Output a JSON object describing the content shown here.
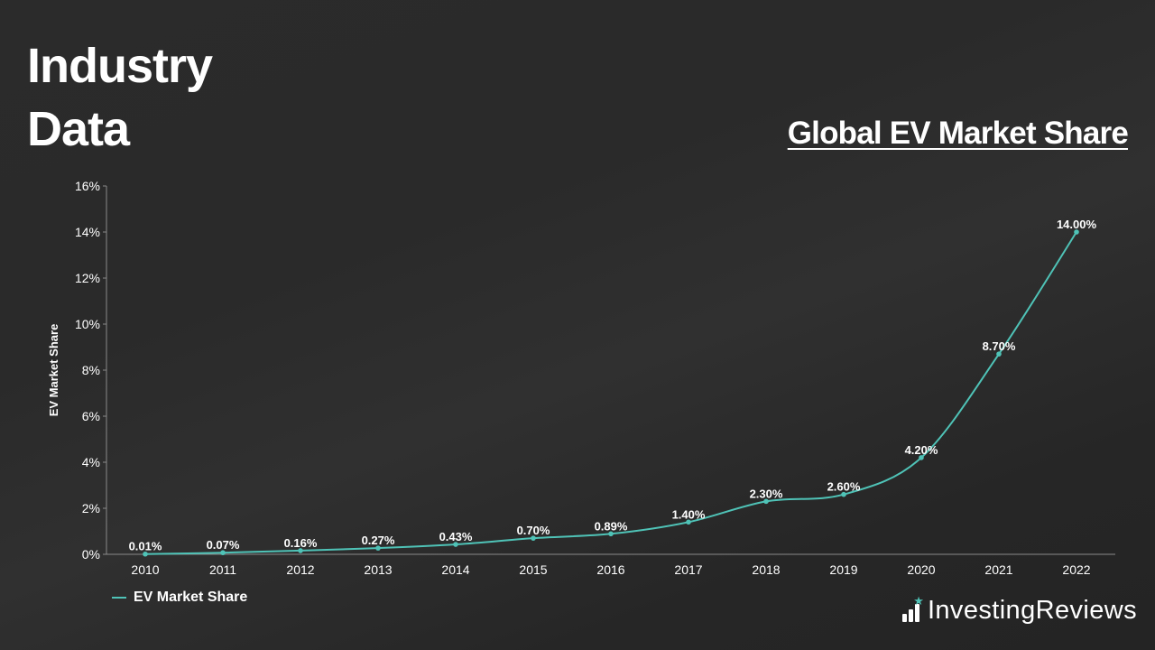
{
  "heading": {
    "line1": "Industry",
    "line2": "Data"
  },
  "brand": {
    "name": "InvestingReviews",
    "icon": "bar-chart-star-icon",
    "accent": "#4fc3b7"
  },
  "colors": {
    "series": "#4fc3b7",
    "axis": "#8a8a8a"
  },
  "chart_data": {
    "type": "line",
    "title": "Global EV Market Share",
    "xlabel": "",
    "ylabel": "EV Market Share",
    "x": [
      "2010",
      "2011",
      "2012",
      "2013",
      "2014",
      "2015",
      "2016",
      "2017",
      "2018",
      "2019",
      "2020",
      "2021",
      "2022"
    ],
    "series": [
      {
        "name": "EV Market Share",
        "values": [
          0.01,
          0.07,
          0.16,
          0.27,
          0.43,
          0.7,
          0.89,
          1.4,
          2.3,
          2.6,
          4.2,
          8.7,
          14.0
        ],
        "labels": [
          "0.01%",
          "0.07%",
          "0.16%",
          "0.27%",
          "0.43%",
          "0.70%",
          "0.89%",
          "1.40%",
          "2.30%",
          "2.60%",
          "4.20%",
          "8.70%",
          "14.00%"
        ]
      }
    ],
    "ylim": [
      0,
      16
    ],
    "yticks": [
      0,
      2,
      4,
      6,
      8,
      10,
      12,
      14,
      16
    ],
    "ytick_labels": [
      "0%",
      "2%",
      "4%",
      "6%",
      "8%",
      "10%",
      "12%",
      "14%",
      "16%"
    ],
    "grid": false,
    "smooth": true,
    "legend": "bottom-left"
  }
}
